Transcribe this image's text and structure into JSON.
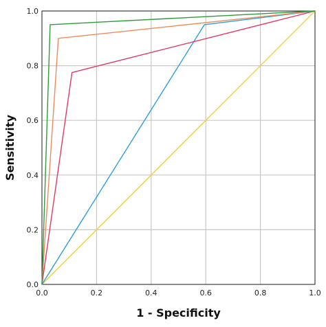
{
  "chart_data": {
    "type": "line",
    "xlabel": "1 - Specificity",
    "ylabel": "Sensitivity",
    "xlim": [
      0,
      1
    ],
    "ylim": [
      0,
      1
    ],
    "xticks": [
      "0.0",
      "0.2",
      "0.4",
      "0.6",
      "0.8",
      "1.0"
    ],
    "yticks": [
      "0.0",
      "0.2",
      "0.4",
      "0.6",
      "0.8",
      "1.0"
    ],
    "grid": true,
    "legend": "none",
    "series": [
      {
        "color": "#e8d33a",
        "points": [
          [
            0,
            0
          ],
          [
            1,
            1
          ]
        ]
      },
      {
        "color": "#2e9fd8",
        "points": [
          [
            0,
            0
          ],
          [
            0.595,
            0.95
          ],
          [
            1,
            1
          ]
        ]
      },
      {
        "color": "#e03a63",
        "points": [
          [
            0,
            0
          ],
          [
            0.11,
            0.775
          ],
          [
            1,
            1
          ]
        ]
      },
      {
        "color": "#f08a5d",
        "points": [
          [
            0,
            0
          ],
          [
            0.06,
            0.9
          ],
          [
            1,
            1
          ]
        ]
      },
      {
        "color": "#2e9a3a",
        "points": [
          [
            0,
            0
          ],
          [
            0.03,
            0.95
          ],
          [
            1,
            1
          ]
        ]
      }
    ]
  }
}
